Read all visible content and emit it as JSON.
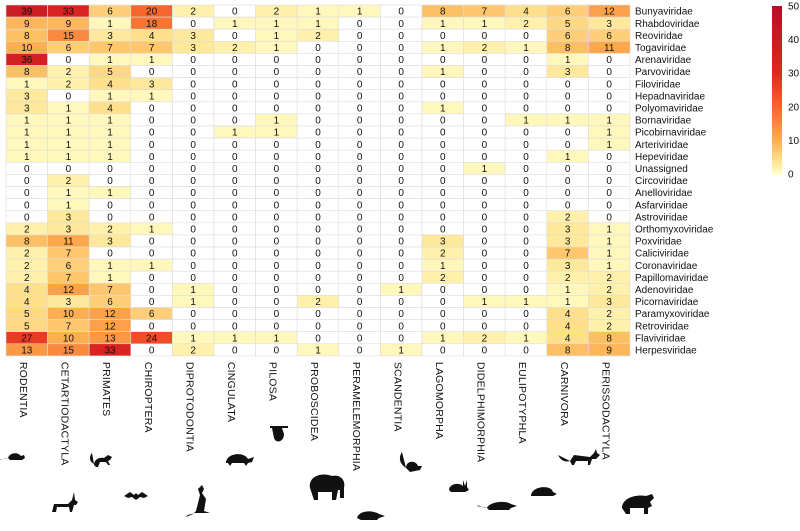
{
  "chart_data": {
    "type": "heatmap",
    "title": "",
    "columns": [
      "RODENTIA",
      "CETARTIODACTYLA",
      "PRIMATES",
      "CHIROPTERA",
      "DIPROTODONTIA",
      "CINGULATA",
      "PILOSA",
      "PROBOSCIDEA",
      "PERAMELEMORPHIA",
      "SCANDENTIA",
      "LAGOMORPHA",
      "DIDELPHIMORPHIA",
      "EULIPOTYPHLA",
      "CARNIVORA",
      "PERISSODACTYLA"
    ],
    "rows": [
      "Bunyaviridae",
      "Rhabdoviridae",
      "Reoviridae",
      "Togaviridae",
      "Arenaviridae",
      "Parvoviridae",
      "Filoviridae",
      "Hepadnaviridae",
      "Polyomaviridae",
      "Bornaviridae",
      "Picobirnaviridae",
      "Arteriviridae",
      "Hepeviridae",
      "Unassigned",
      "Circoviridae",
      "Anelloviridae",
      "Asfarviridae",
      "Astroviridae",
      "Orthomyxoviridae",
      "Poxviridae",
      "Caliciviridae",
      "Coronaviridae",
      "Papillomaviridae",
      "Adenoviridae",
      "Picornaviridae",
      "Paramyxoviridae",
      "Retroviridae",
      "Flaviviridae",
      "Herpesviridae"
    ],
    "values": [
      [
        39,
        33,
        6,
        20,
        2,
        0,
        2,
        1,
        1,
        0,
        8,
        7,
        4,
        6,
        12
      ],
      [
        9,
        9,
        1,
        18,
        0,
        1,
        1,
        1,
        0,
        0,
        1,
        1,
        2,
        5,
        3
      ],
      [
        8,
        15,
        3,
        4,
        3,
        0,
        1,
        2,
        0,
        0,
        0,
        0,
        0,
        6,
        6
      ],
      [
        10,
        6,
        7,
        7,
        3,
        2,
        1,
        0,
        0,
        0,
        1,
        2,
        1,
        8,
        11
      ],
      [
        36,
        0,
        1,
        1,
        0,
        0,
        0,
        0,
        0,
        0,
        0,
        0,
        0,
        1,
        0
      ],
      [
        8,
        2,
        5,
        0,
        0,
        0,
        0,
        0,
        0,
        0,
        1,
        0,
        0,
        3,
        0
      ],
      [
        1,
        2,
        4,
        3,
        0,
        0,
        0,
        0,
        0,
        0,
        0,
        0,
        0,
        0,
        0
      ],
      [
        3,
        0,
        1,
        1,
        0,
        0,
        0,
        0,
        0,
        0,
        0,
        0,
        0,
        0,
        0
      ],
      [
        3,
        1,
        4,
        0,
        0,
        0,
        0,
        0,
        0,
        0,
        1,
        0,
        0,
        0,
        0
      ],
      [
        1,
        1,
        1,
        0,
        0,
        0,
        1,
        0,
        0,
        0,
        0,
        0,
        1,
        1,
        1
      ],
      [
        1,
        1,
        1,
        0,
        0,
        1,
        1,
        0,
        0,
        0,
        0,
        0,
        0,
        0,
        1
      ],
      [
        1,
        1,
        1,
        0,
        0,
        0,
        0,
        0,
        0,
        0,
        0,
        0,
        0,
        0,
        1
      ],
      [
        1,
        1,
        1,
        0,
        0,
        0,
        0,
        0,
        0,
        0,
        0,
        0,
        0,
        1,
        0
      ],
      [
        0,
        0,
        0,
        0,
        0,
        0,
        0,
        0,
        0,
        0,
        0,
        1,
        0,
        0,
        0
      ],
      [
        0,
        2,
        0,
        0,
        0,
        0,
        0,
        0,
        0,
        0,
        0,
        0,
        0,
        0,
        0
      ],
      [
        0,
        1,
        1,
        0,
        0,
        0,
        0,
        0,
        0,
        0,
        0,
        0,
        0,
        0,
        0
      ],
      [
        0,
        1,
        0,
        0,
        0,
        0,
        0,
        0,
        0,
        0,
        0,
        0,
        0,
        0,
        0
      ],
      [
        0,
        3,
        0,
        0,
        0,
        0,
        0,
        0,
        0,
        0,
        0,
        0,
        0,
        2,
        0
      ],
      [
        2,
        3,
        2,
        1,
        0,
        0,
        0,
        0,
        0,
        0,
        0,
        0,
        0,
        3,
        1
      ],
      [
        8,
        11,
        3,
        0,
        0,
        0,
        0,
        0,
        0,
        0,
        3,
        0,
        0,
        3,
        1
      ],
      [
        2,
        7,
        0,
        0,
        0,
        0,
        0,
        0,
        0,
        0,
        2,
        0,
        0,
        7,
        1
      ],
      [
        2,
        6,
        1,
        1,
        0,
        0,
        0,
        0,
        0,
        0,
        1,
        0,
        0,
        3,
        1
      ],
      [
        2,
        7,
        1,
        0,
        0,
        0,
        0,
        0,
        0,
        0,
        2,
        0,
        0,
        2,
        2
      ],
      [
        4,
        12,
        7,
        0,
        1,
        0,
        0,
        0,
        0,
        1,
        0,
        0,
        0,
        1,
        2
      ],
      [
        4,
        3,
        6,
        0,
        1,
        0,
        0,
        2,
        0,
        0,
        0,
        1,
        1,
        1,
        3
      ],
      [
        5,
        10,
        12,
        6,
        0,
        0,
        0,
        0,
        0,
        0,
        0,
        0,
        0,
        4,
        2
      ],
      [
        5,
        7,
        12,
        0,
        0,
        0,
        0,
        0,
        0,
        0,
        0,
        0,
        0,
        4,
        2
      ],
      [
        27,
        10,
        13,
        24,
        1,
        1,
        1,
        0,
        0,
        0,
        1,
        2,
        1,
        4,
        8
      ],
      [
        13,
        15,
        33,
        0,
        2,
        0,
        0,
        1,
        0,
        1,
        0,
        0,
        0,
        8,
        9
      ]
    ],
    "legend": {
      "title": "",
      "ticks": [
        50,
        40,
        30,
        20,
        10,
        0
      ],
      "range": [
        0,
        50
      ],
      "placement": "top-right"
    },
    "colors": {
      "low": "#ffffcc",
      "mid1": "#feda7e",
      "mid2": "#fd9e43",
      "mid3": "#f23d22",
      "high": "#b50c26",
      "grid": "#dddddd",
      "zero": "#ffffff"
    },
    "icons": [
      "mouse-silhouette",
      "antelope-silhouette",
      "monkey-silhouette",
      "bat-silhouette",
      "kangaroo-silhouette",
      "armadillo-silhouette",
      "sloth-silhouette",
      "elephant-silhouette",
      "bandicoot-silhouette",
      "treeshrew-silhouette",
      "rabbit-silhouette",
      "opossum-silhouette",
      "hedgehog-silhouette",
      "fox-silhouette",
      "rhino-silhouette"
    ]
  }
}
